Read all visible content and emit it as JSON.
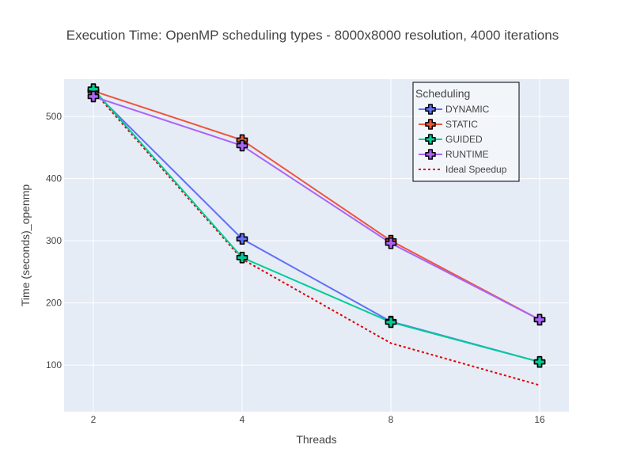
{
  "chart_data": {
    "type": "line",
    "title": "Execution Time: OpenMP scheduling types - 8000x8000 resolution, 4000 iterations",
    "xlabel": "Threads",
    "ylabel": "Time (seconds)_openmp",
    "x_scale": "log2",
    "x": [
      2,
      4,
      8,
      16
    ],
    "x_tick_labels": [
      "2",
      "4",
      "8",
      "16"
    ],
    "ylim": [
      25,
      560
    ],
    "y_ticks": [
      100,
      200,
      300,
      400,
      500
    ],
    "grid": true,
    "legend": {
      "title": "Scheduling",
      "placement": "top-right"
    },
    "series": [
      {
        "name": "DYNAMIC",
        "color": "#636efa",
        "marker": "cross",
        "line_style": "solid",
        "values": [
          541,
          303,
          170,
          105
        ]
      },
      {
        "name": "STATIC",
        "color": "#ef553b",
        "marker": "cross",
        "line_style": "solid",
        "values": [
          541,
          462,
          300,
          173
        ]
      },
      {
        "name": "GUIDED",
        "color": "#00cc96",
        "marker": "cross",
        "line_style": "solid",
        "values": [
          544,
          273,
          169,
          105
        ]
      },
      {
        "name": "RUNTIME",
        "color": "#ab63fa",
        "marker": "cross",
        "line_style": "solid",
        "values": [
          532,
          453,
          296,
          173
        ]
      },
      {
        "name": "Ideal Speedup",
        "color": "#dd0000",
        "marker": "none",
        "line_style": "dotted",
        "values": [
          541,
          270.5,
          135.25,
          67.6
        ]
      }
    ],
    "colors": {
      "plot_background": "#e5ecf6",
      "grid": "#ffffff",
      "text": "#444444"
    }
  }
}
